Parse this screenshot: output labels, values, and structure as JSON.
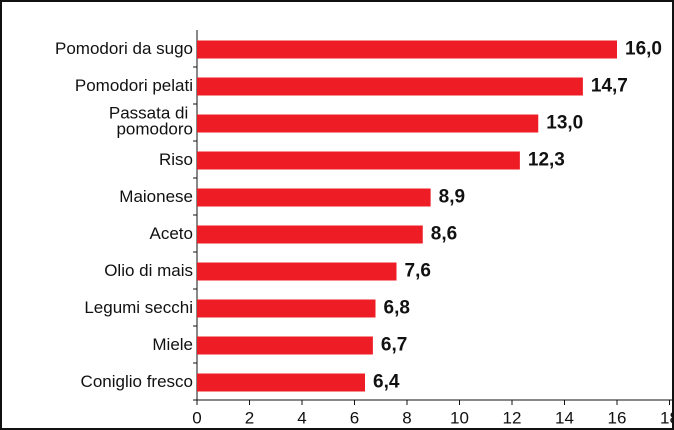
{
  "chart_data": {
    "type": "bar",
    "orientation": "horizontal",
    "categories": [
      "Pomodori da sugo",
      "Pomodori pelati",
      "Passata di pomodoro",
      "Riso",
      "Maionese",
      "Aceto",
      "Olio di mais",
      "Legumi secchi",
      "Miele",
      "Coniglio fresco"
    ],
    "values": [
      16.0,
      14.7,
      13.0,
      12.3,
      8.9,
      8.6,
      7.6,
      6.8,
      6.7,
      6.4
    ],
    "value_labels": [
      "16,0",
      "14,7",
      "13,0",
      "12,3",
      "8,9",
      "8,6",
      "7,6",
      "6,8",
      "6,7",
      "6,4"
    ],
    "color": "#ee1c25",
    "xlim": [
      0,
      18
    ],
    "xticks": [
      0,
      2,
      4,
      6,
      8,
      10,
      12,
      14,
      16,
      18
    ]
  }
}
